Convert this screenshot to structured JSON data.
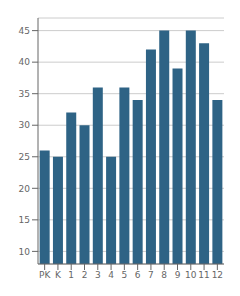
{
  "chart_data": {
    "type": "bar",
    "categories": [
      "PK",
      "K",
      "1",
      "2",
      "3",
      "4",
      "5",
      "6",
      "7",
      "8",
      "9",
      "10",
      "11",
      "12"
    ],
    "values": [
      26,
      25,
      32,
      30,
      36,
      25,
      36,
      34,
      42,
      45,
      39,
      45,
      43,
      34
    ],
    "color": "#2e6385",
    "ylim": [
      8,
      47
    ],
    "yticks": [
      10,
      15,
      20,
      25,
      30,
      35,
      40,
      45
    ],
    "grid": true
  }
}
